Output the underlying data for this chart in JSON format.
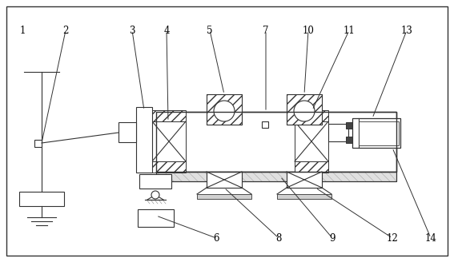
{
  "bg_color": "#ffffff",
  "line_color": "#333333",
  "label_color": "#000000",
  "fig_width": 5.67,
  "fig_height": 3.28,
  "dpi": 100
}
